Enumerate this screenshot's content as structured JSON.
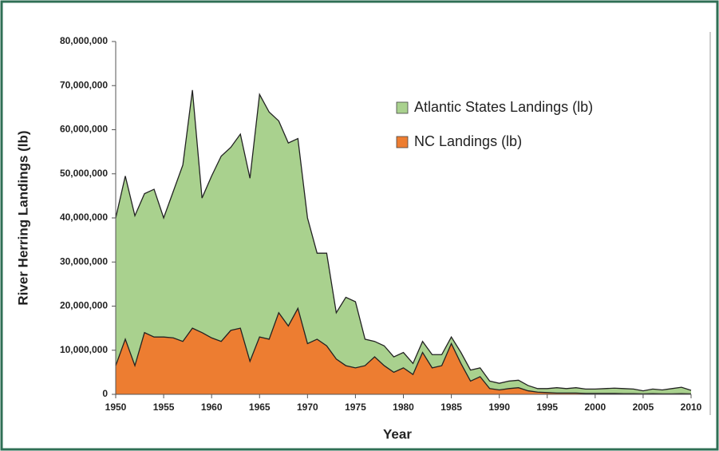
{
  "chart_data": {
    "type": "area",
    "xlabel": "Year",
    "ylabel": "River Herring Landings (lb)",
    "x": [
      1950,
      1951,
      1952,
      1953,
      1954,
      1955,
      1956,
      1957,
      1958,
      1959,
      1960,
      1961,
      1962,
      1963,
      1964,
      1965,
      1966,
      1967,
      1968,
      1969,
      1970,
      1971,
      1972,
      1973,
      1974,
      1975,
      1976,
      1977,
      1978,
      1979,
      1980,
      1981,
      1982,
      1983,
      1984,
      1985,
      1986,
      1987,
      1988,
      1989,
      1990,
      1991,
      1992,
      1993,
      1994,
      1995,
      1996,
      1997,
      1998,
      1999,
      2000,
      2001,
      2002,
      2003,
      2004,
      2005,
      2006,
      2007,
      2008,
      2009,
      2010
    ],
    "series": [
      {
        "name": "Atlantic States Landings (lb)",
        "color": "#a9d18e",
        "values": [
          40000000,
          49500000,
          40500000,
          45500000,
          46500000,
          40000000,
          46000000,
          52000000,
          69000000,
          44500000,
          49500000,
          54000000,
          56000000,
          59000000,
          49000000,
          68000000,
          64000000,
          62000000,
          57000000,
          58000000,
          40000000,
          32000000,
          32000000,
          18500000,
          22000000,
          21000000,
          12500000,
          12000000,
          11000000,
          8500000,
          9500000,
          7000000,
          12000000,
          9000000,
          9000000,
          13000000,
          9500000,
          5500000,
          6000000,
          3000000,
          2500000,
          3000000,
          3200000,
          2000000,
          1300000,
          1300000,
          1500000,
          1300000,
          1500000,
          1200000,
          1200000,
          1300000,
          1400000,
          1300000,
          1200000,
          800000,
          1200000,
          1000000,
          1300000,
          1600000,
          900000
        ]
      },
      {
        "name": "NC Landings (lb)",
        "color": "#ed7d31",
        "values": [
          6500000,
          12500000,
          6500000,
          14000000,
          13000000,
          13000000,
          12800000,
          12000000,
          15000000,
          14000000,
          12800000,
          12000000,
          14500000,
          15000000,
          7500000,
          13000000,
          12500000,
          18500000,
          15500000,
          19500000,
          11500000,
          12500000,
          11000000,
          8000000,
          6500000,
          6000000,
          6500000,
          8500000,
          6500000,
          5000000,
          6000000,
          4500000,
          9500000,
          6000000,
          6500000,
          11500000,
          7000000,
          3000000,
          4000000,
          1300000,
          1000000,
          1300000,
          1500000,
          800000,
          500000,
          400000,
          300000,
          300000,
          300000,
          200000,
          200000,
          200000,
          200000,
          150000,
          150000,
          100000,
          150000,
          100000,
          100000,
          150000,
          100000
        ]
      }
    ],
    "xlim": [
      1950,
      2010
    ],
    "xticks": [
      1950,
      1955,
      1960,
      1965,
      1970,
      1975,
      1980,
      1985,
      1990,
      1995,
      2000,
      2005,
      2010
    ],
    "ylim": [
      0,
      80000000
    ],
    "yticks": [
      0,
      {
        "value": 10000000,
        "label": "10,000,000"
      },
      {
        "value": 20000000,
        "label": "20,000,000"
      },
      {
        "value": 30000000,
        "label": "30,000,000"
      },
      {
        "value": 40000000,
        "label": "40,000,000"
      },
      {
        "value": 50000000,
        "label": "50,000,000"
      },
      {
        "value": 60000000,
        "label": "60,000,000"
      },
      {
        "value": 70000000,
        "label": "70,000,000"
      },
      {
        "value": 80000000,
        "label": "80,000,000"
      }
    ],
    "legend": "upper right"
  }
}
